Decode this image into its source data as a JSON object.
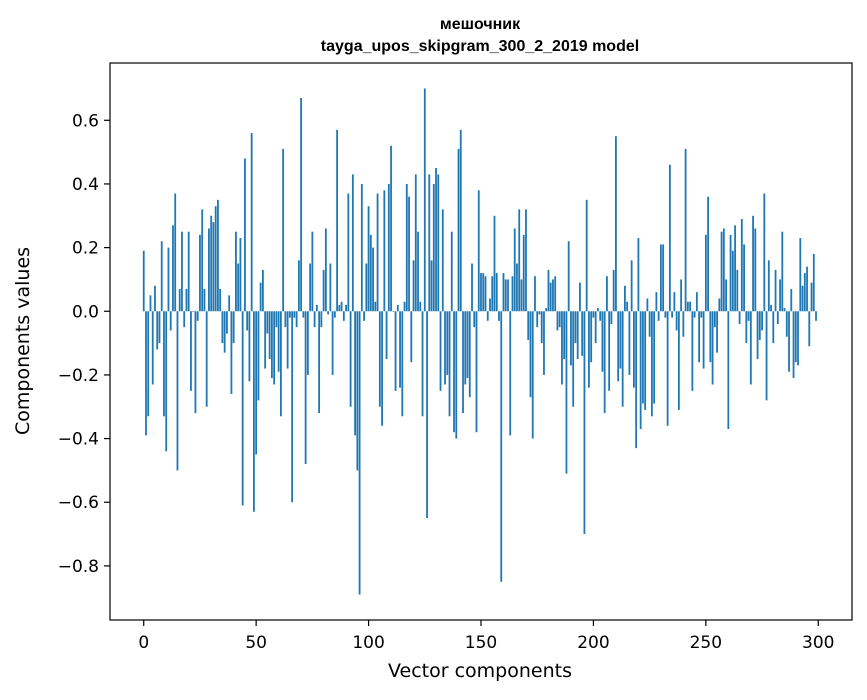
{
  "chart_data": {
    "type": "bar",
    "title": "мешочник",
    "subtitle": "tayga_upos_skipgram_300_2_2019 model",
    "xlabel": "Vector components",
    "ylabel": "Components values",
    "xlim": [
      -15,
      315
    ],
    "ylim": [
      -0.97,
      0.78
    ],
    "xticks": [
      0,
      50,
      100,
      150,
      200,
      250,
      300
    ],
    "yticks": [
      -0.8,
      -0.6,
      -0.4,
      -0.2,
      0.0,
      0.2,
      0.4,
      0.6
    ],
    "ytick_labels": [
      "−0.8",
      "−0.6",
      "−0.4",
      "−0.2",
      "0.0",
      "0.2",
      "0.4",
      "0.6"
    ],
    "xtick_labels": [
      "0",
      "50",
      "100",
      "150",
      "200",
      "250",
      "300"
    ],
    "grid": false,
    "bar_color": "#1f77b4",
    "x": [
      0,
      1,
      2,
      3,
      4,
      5,
      6,
      7,
      8,
      9,
      10,
      11,
      12,
      13,
      14,
      15,
      16,
      17,
      18,
      19,
      20,
      21,
      22,
      23,
      24,
      25,
      26,
      27,
      28,
      29,
      30,
      31,
      32,
      33,
      34,
      35,
      36,
      37,
      38,
      39,
      40,
      41,
      42,
      43,
      44,
      45,
      46,
      47,
      48,
      49,
      50,
      51,
      52,
      53,
      54,
      55,
      56,
      57,
      58,
      59,
      60,
      61,
      62,
      63,
      64,
      65,
      66,
      67,
      68,
      69,
      70,
      71,
      72,
      73,
      74,
      75,
      76,
      77,
      78,
      79,
      80,
      81,
      82,
      83,
      84,
      85,
      86,
      87,
      88,
      89,
      90,
      91,
      92,
      93,
      94,
      95,
      96,
      97,
      98,
      99,
      100,
      101,
      102,
      103,
      104,
      105,
      106,
      107,
      108,
      109,
      110,
      111,
      112,
      113,
      114,
      115,
      116,
      117,
      118,
      119,
      120,
      121,
      122,
      123,
      124,
      125,
      126,
      127,
      128,
      129,
      130,
      131,
      132,
      133,
      134,
      135,
      136,
      137,
      138,
      139,
      140,
      141,
      142,
      143,
      144,
      145,
      146,
      147,
      148,
      149,
      150,
      151,
      152,
      153,
      154,
      155,
      156,
      157,
      158,
      159,
      160,
      161,
      162,
      163,
      164,
      165,
      166,
      167,
      168,
      169,
      170,
      171,
      172,
      173,
      174,
      175,
      176,
      177,
      178,
      179,
      180,
      181,
      182,
      183,
      184,
      185,
      186,
      187,
      188,
      189,
      190,
      191,
      192,
      193,
      194,
      195,
      196,
      197,
      198,
      199,
      200,
      201,
      202,
      203,
      204,
      205,
      206,
      207,
      208,
      209,
      210,
      211,
      212,
      213,
      214,
      215,
      216,
      217,
      218,
      219,
      220,
      221,
      222,
      223,
      224,
      225,
      226,
      227,
      228,
      229,
      230,
      231,
      232,
      233,
      234,
      235,
      236,
      237,
      238,
      239,
      240,
      241,
      242,
      243,
      244,
      245,
      246,
      247,
      248,
      249,
      250,
      251,
      252,
      253,
      254,
      255,
      256,
      257,
      258,
      259,
      260,
      261,
      262,
      263,
      264,
      265,
      266,
      267,
      268,
      269,
      270,
      271,
      272,
      273,
      274,
      275,
      276,
      277,
      278,
      279,
      280,
      281,
      282,
      283,
      284,
      285,
      286,
      287,
      288,
      289,
      290,
      291,
      292,
      293,
      294,
      295,
      296,
      297,
      298,
      299
    ],
    "values": [
      0.19,
      -0.39,
      -0.33,
      0.05,
      -0.23,
      0.08,
      -0.12,
      -0.1,
      0.22,
      -0.33,
      -0.44,
      0.2,
      -0.06,
      0.27,
      0.37,
      -0.5,
      0.07,
      0.25,
      -0.05,
      0.07,
      0.25,
      -0.25,
      0.0,
      -0.32,
      -0.03,
      0.24,
      0.32,
      0.07,
      -0.3,
      0.26,
      0.3,
      0.28,
      0.33,
      0.35,
      0.07,
      -0.1,
      -0.13,
      -0.07,
      0.05,
      -0.26,
      -0.1,
      0.25,
      0.15,
      0.23,
      -0.61,
      0.48,
      -0.06,
      -0.22,
      0.56,
      -0.63,
      -0.45,
      -0.28,
      0.09,
      0.13,
      -0.18,
      -0.07,
      -0.15,
      -0.21,
      -0.23,
      -0.05,
      -0.19,
      -0.33,
      0.51,
      -0.05,
      -0.18,
      -0.02,
      -0.6,
      -0.02,
      -0.05,
      0.16,
      0.67,
      -0.02,
      -0.48,
      -0.2,
      0.15,
      0.25,
      -0.05,
      0.02,
      -0.32,
      -0.05,
      0.13,
      0.26,
      -0.01,
      0.15,
      -0.2,
      -0.02,
      0.57,
      0.02,
      0.03,
      -0.03,
      0.02,
      0.37,
      -0.3,
      0.43,
      -0.39,
      -0.5,
      -0.89,
      0.4,
      -0.03,
      0.15,
      0.33,
      0.24,
      0.2,
      0.03,
      0.37,
      -0.3,
      -0.36,
      0.38,
      -0.15,
      0.4,
      0.52,
      0.0,
      -0.25,
      0.02,
      -0.24,
      -0.33,
      0.03,
      0.4,
      0.36,
      -0.16,
      0.16,
      0.43,
      0.25,
      0.03,
      -0.33,
      0.7,
      -0.65,
      0.43,
      0.16,
      0.4,
      0.45,
      0.43,
      -0.25,
      0.32,
      -0.23,
      -0.2,
      -0.33,
      0.25,
      -0.38,
      -0.4,
      0.51,
      0.57,
      -0.32,
      -0.23,
      -0.21,
      -0.27,
      0.15,
      -0.05,
      -0.38,
      0.38,
      0.12,
      0.12,
      0.11,
      -0.03,
      0.04,
      0.11,
      0.3,
      0.12,
      -0.03,
      -0.85,
      0.12,
      0.1,
      0.1,
      -0.39,
      0.11,
      0.26,
      0.15,
      0.32,
      0.1,
      0.24,
      0.32,
      -0.09,
      -0.27,
      -0.4,
      0.11,
      -0.05,
      -0.01,
      -0.1,
      -0.2,
      0.01,
      0.13,
      0.09,
      0.1,
      0.11,
      -0.06,
      -0.05,
      -0.23,
      -0.15,
      -0.51,
      0.22,
      -0.17,
      -0.3,
      -0.1,
      -0.15,
      0.09,
      -0.14,
      -0.7,
      0.35,
      -0.24,
      -0.16,
      -0.02,
      -0.1,
      0.01,
      -0.03,
      -0.19,
      -0.32,
      0.11,
      -0.25,
      -0.04,
      0.13,
      0.55,
      -0.22,
      -0.18,
      -0.3,
      0.08,
      0.03,
      -0.2,
      0.16,
      -0.24,
      -0.43,
      0.23,
      -0.37,
      -0.29,
      -0.31,
      0.04,
      -0.08,
      -0.33,
      -0.29,
      0.06,
      -0.03,
      0.21,
      0.21,
      -0.02,
      -0.36,
      0.46,
      -0.02,
      0.06,
      -0.06,
      -0.31,
      0.1,
      -0.08,
      0.51,
      0.03,
      0.03,
      -0.25,
      -0.02,
      0.06,
      -0.16,
      -0.02,
      -0.18,
      0.24,
      0.36,
      -0.16,
      -0.23,
      -0.05,
      -0.13,
      0.04,
      0.25,
      0.26,
      0.1,
      -0.37,
      0.24,
      0.19,
      0.27,
      0.13,
      -0.04,
      0.29,
      0.21,
      -0.1,
      -0.03,
      -0.23,
      0.3,
      0.26,
      -0.15,
      -0.09,
      -0.06,
      0.37,
      -0.28,
      0.16,
      0.02,
      -0.1,
      0.13,
      -0.04,
      0.1,
      0.25,
      0.01,
      -0.08,
      -0.19,
      0.07,
      -0.21,
      -0.16,
      -0.17,
      0.23,
      0.08,
      0.12,
      0.14,
      -0.11,
      0.09,
      0.18,
      -0.03
    ]
  }
}
